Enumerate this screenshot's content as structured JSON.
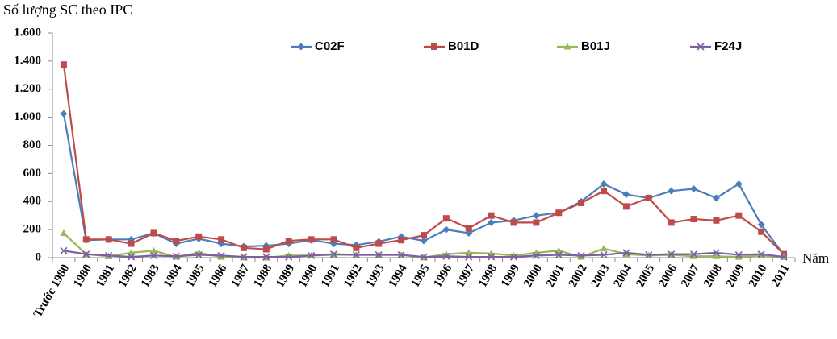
{
  "chart_data": {
    "type": "line",
    "y_label": "Số lượng SC theo IPC",
    "x_label": "Năm",
    "categories": [
      "Trước 1980",
      "1980",
      "1981",
      "1982",
      "1983",
      "1984",
      "1985",
      "1986",
      "1987",
      "1988",
      "1989",
      "1990",
      "1991",
      "1992",
      "1993",
      "1994",
      "1995",
      "1996",
      "1997",
      "1998",
      "1999",
      "2000",
      "2001",
      "2002",
      "2003",
      "2004",
      "2005",
      "2006",
      "2007",
      "2008",
      "2009",
      "2010",
      "2011"
    ],
    "series": [
      {
        "name": "C02F",
        "color": "#4a7ebb",
        "marker": "diamond",
        "values": [
          1025,
          125,
          130,
          130,
          175,
          100,
          135,
          100,
          80,
          85,
          100,
          125,
          100,
          90,
          115,
          150,
          120,
          200,
          175,
          250,
          265,
          300,
          320,
          400,
          525,
          450,
          425,
          475,
          490,
          425,
          525,
          235,
          20
        ]
      },
      {
        "name": "B01D",
        "color": "#be4b48",
        "marker": "square",
        "values": [
          1375,
          130,
          130,
          100,
          175,
          120,
          150,
          130,
          70,
          60,
          120,
          130,
          130,
          70,
          100,
          125,
          160,
          280,
          210,
          300,
          250,
          250,
          320,
          390,
          475,
          365,
          425,
          250,
          275,
          265,
          300,
          185,
          25
        ]
      },
      {
        "name": "B01J",
        "color": "#98b954",
        "marker": "triangle",
        "values": [
          175,
          25,
          10,
          35,
          50,
          5,
          35,
          5,
          0,
          0,
          15,
          15,
          20,
          20,
          20,
          20,
          0,
          25,
          35,
          30,
          15,
          35,
          50,
          5,
          65,
          25,
          15,
          20,
          10,
          10,
          5,
          15,
          5
        ]
      },
      {
        "name": "F24J",
        "color": "#7d60a0",
        "marker": "x",
        "values": [
          50,
          25,
          15,
          5,
          15,
          10,
          20,
          15,
          5,
          5,
          5,
          15,
          25,
          20,
          20,
          20,
          5,
          10,
          5,
          5,
          5,
          15,
          20,
          15,
          20,
          35,
          20,
          25,
          25,
          35,
          20,
          25,
          5
        ]
      }
    ],
    "ylim": [
      0,
      1600
    ],
    "yticks": [
      0,
      200,
      400,
      600,
      800,
      {
        "value": 1000,
        "label": "1.000"
      },
      {
        "value": 1200,
        "label": "1.200"
      },
      {
        "value": 1400,
        "label": "1.400"
      },
      {
        "value": 1600,
        "label": "1.600"
      }
    ],
    "grid": false,
    "legend": "top"
  }
}
